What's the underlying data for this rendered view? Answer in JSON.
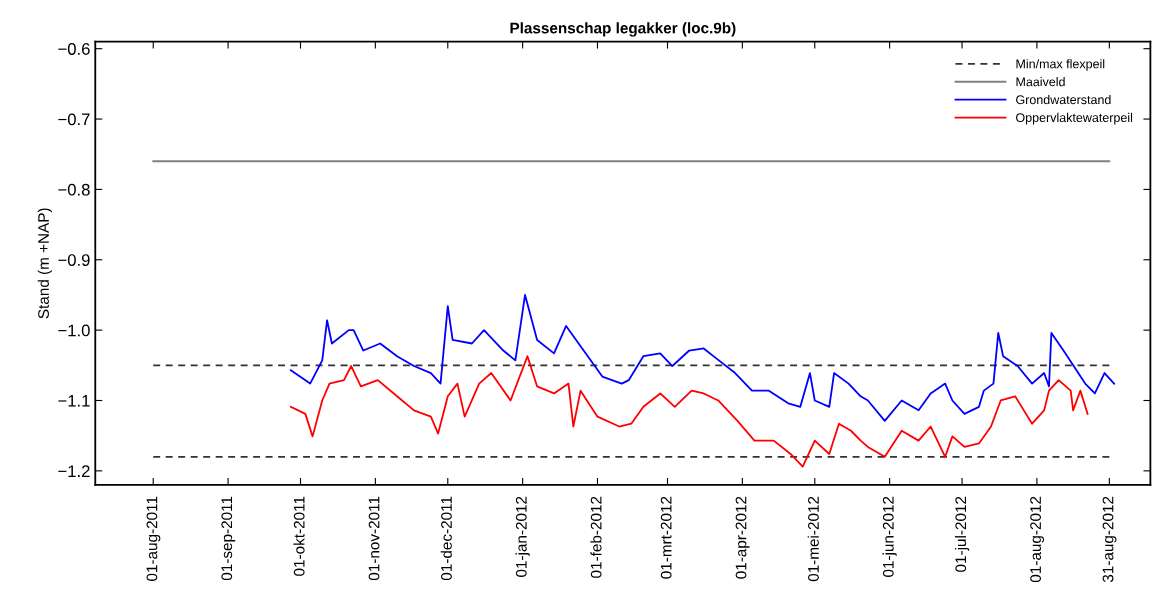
{
  "chart_data": {
    "type": "line",
    "title": "Plassenschap legakker (loc.9b)",
    "ylabel": "Stand (m +NAP)",
    "xlim": [
      "2011-07-08",
      "2012-09-17"
    ],
    "ylim": [
      -1.22,
      -0.59
    ],
    "yticks": [
      {
        "value": -0.6,
        "label": "−0.6"
      },
      {
        "value": -0.7,
        "label": "−0.7"
      },
      {
        "value": -0.8,
        "label": "−0.8"
      },
      {
        "value": -0.9,
        "label": "−0.9"
      },
      {
        "value": -1.0,
        "label": "−1.0"
      },
      {
        "value": -1.1,
        "label": "−1.1"
      },
      {
        "value": -1.2,
        "label": "−1.2"
      }
    ],
    "xticks": [
      {
        "value": "2011-08-01",
        "label": "01-aug-2011"
      },
      {
        "value": "2011-09-01",
        "label": "01-sep-2011"
      },
      {
        "value": "2011-10-01",
        "label": "01-okt-2011"
      },
      {
        "value": "2011-11-01",
        "label": "01-nov-2011"
      },
      {
        "value": "2011-12-01",
        "label": "01-dec-2011"
      },
      {
        "value": "2012-01-01",
        "label": "01-jan-2012"
      },
      {
        "value": "2012-02-01",
        "label": "01-feb-2012"
      },
      {
        "value": "2012-03-01",
        "label": "01-mrt-2012"
      },
      {
        "value": "2012-04-01",
        "label": "01-apr-2012"
      },
      {
        "value": "2012-05-01",
        "label": "01-mei-2012"
      },
      {
        "value": "2012-06-01",
        "label": "01-jun-2012"
      },
      {
        "value": "2012-07-01",
        "label": "01-jul-2012"
      },
      {
        "value": "2012-08-01",
        "label": "01-aug-2012"
      },
      {
        "value": "2012-08-31",
        "label": "31-aug-2012"
      }
    ],
    "grid": false,
    "legend": "top right",
    "marker": "none",
    "series": [
      {
        "name": "Min/max flexpeil",
        "line_style": "dashed",
        "color": "#333333",
        "x": [
          "2011-08-01",
          "2012-08-31"
        ],
        "values": [
          -1.05,
          -1.05
        ]
      },
      {
        "line_style": "dashed",
        "color": "#333333",
        "x": [
          "2011-08-01",
          "2012-08-31"
        ],
        "values": [
          -1.18,
          -1.18
        ]
      },
      {
        "name": "Maaiveld",
        "line_style": "solid",
        "color": "#808080",
        "x": [
          "2011-08-01",
          "2012-08-31"
        ],
        "values": [
          -0.76,
          -0.76
        ]
      },
      {
        "name": "Grondwaterstand",
        "line_style": "solid",
        "color": "#0000ff",
        "x": [
          "2011-09-27",
          "2011-10-05",
          "2011-10-10",
          "2011-10-12",
          "2011-10-14",
          "2011-10-21",
          "2011-10-23",
          "2011-10-27",
          "2011-11-03",
          "2011-11-10",
          "2011-11-17",
          "2011-11-24",
          "2011-11-28",
          "2011-12-01",
          "2011-12-03",
          "2011-12-11",
          "2011-12-16",
          "2011-12-24",
          "2011-12-29",
          "2012-01-02",
          "2012-01-07",
          "2012-01-14",
          "2012-01-19",
          "2012-01-25",
          "2012-02-03",
          "2012-02-11",
          "2012-02-14",
          "2012-02-20",
          "2012-02-27",
          "2012-03-03",
          "2012-03-10",
          "2012-03-16",
          "2012-03-20",
          "2012-03-29",
          "2012-04-05",
          "2012-04-12",
          "2012-04-20",
          "2012-04-25",
          "2012-04-29",
          "2012-05-01",
          "2012-05-07",
          "2012-05-09",
          "2012-05-15",
          "2012-05-20",
          "2012-05-23",
          "2012-05-30",
          "2012-06-06",
          "2012-06-13",
          "2012-06-18",
          "2012-06-24",
          "2012-06-27",
          "2012-07-02",
          "2012-07-08",
          "2012-07-10",
          "2012-07-14",
          "2012-07-16",
          "2012-07-18",
          "2012-07-24",
          "2012-07-30",
          "2012-08-04",
          "2012-08-06",
          "2012-08-07",
          "2012-08-12",
          "2012-08-21",
          "2012-08-25",
          "2012-08-29",
          "2012-09-02"
        ],
        "values": [
          -1.057,
          -1.076,
          -1.043,
          -0.986,
          -1.019,
          -1.0,
          -1.0,
          -1.029,
          -1.019,
          -1.037,
          -1.051,
          -1.061,
          -1.076,
          -0.966,
          -1.014,
          -1.019,
          -1.0,
          -1.029,
          -1.043,
          -0.95,
          -1.014,
          -1.033,
          -0.994,
          -1.023,
          -1.066,
          -1.076,
          -1.071,
          -1.037,
          -1.033,
          -1.051,
          -1.029,
          -1.026,
          -1.037,
          -1.061,
          -1.086,
          -1.086,
          -1.104,
          -1.109,
          -1.061,
          -1.1,
          -1.109,
          -1.061,
          -1.076,
          -1.094,
          -1.1,
          -1.129,
          -1.1,
          -1.114,
          -1.09,
          -1.076,
          -1.1,
          -1.119,
          -1.109,
          -1.086,
          -1.076,
          -1.004,
          -1.037,
          -1.051,
          -1.076,
          -1.061,
          -1.08,
          -1.004,
          -1.029,
          -1.076,
          -1.09,
          -1.061,
          -1.076
        ]
      },
      {
        "name": "Oppervlaktewaterpeil",
        "line_style": "solid",
        "color": "#ff0000",
        "x": [
          "2011-09-27",
          "2011-10-03",
          "2011-10-06",
          "2011-10-10",
          "2011-10-13",
          "2011-10-19",
          "2011-10-22",
          "2011-10-26",
          "2011-11-02",
          "2011-11-10",
          "2011-11-17",
          "2011-11-24",
          "2011-11-27",
          "2011-12-01",
          "2011-12-05",
          "2011-12-08",
          "2011-12-14",
          "2011-12-19",
          "2011-12-27",
          "2012-01-03",
          "2012-01-07",
          "2012-01-14",
          "2012-01-20",
          "2012-01-22",
          "2012-01-25",
          "2012-02-01",
          "2012-02-10",
          "2012-02-15",
          "2012-02-20",
          "2012-02-27",
          "2012-03-04",
          "2012-03-11",
          "2012-03-16",
          "2012-03-22",
          "2012-03-30",
          "2012-04-06",
          "2012-04-14",
          "2012-04-21",
          "2012-04-26",
          "2012-05-01",
          "2012-05-07",
          "2012-05-11",
          "2012-05-16",
          "2012-05-20",
          "2012-05-23",
          "2012-05-30",
          "2012-06-06",
          "2012-06-13",
          "2012-06-18",
          "2012-06-24",
          "2012-06-27",
          "2012-07-02",
          "2012-07-08",
          "2012-07-13",
          "2012-07-17",
          "2012-07-23",
          "2012-07-30",
          "2012-08-04",
          "2012-08-06",
          "2012-08-10",
          "2012-08-15",
          "2012-08-16",
          "2012-08-19",
          "2012-08-22"
        ],
        "values": [
          -1.109,
          -1.119,
          -1.151,
          -1.1,
          -1.076,
          -1.071,
          -1.051,
          -1.08,
          -1.071,
          -1.094,
          -1.114,
          -1.123,
          -1.147,
          -1.094,
          -1.076,
          -1.123,
          -1.076,
          -1.061,
          -1.1,
          -1.037,
          -1.08,
          -1.09,
          -1.076,
          -1.137,
          -1.086,
          -1.123,
          -1.137,
          -1.133,
          -1.109,
          -1.09,
          -1.109,
          -1.086,
          -1.09,
          -1.1,
          -1.129,
          -1.157,
          -1.157,
          -1.176,
          -1.194,
          -1.157,
          -1.176,
          -1.133,
          -1.143,
          -1.157,
          -1.166,
          -1.18,
          -1.143,
          -1.157,
          -1.137,
          -1.18,
          -1.151,
          -1.166,
          -1.161,
          -1.137,
          -1.1,
          -1.094,
          -1.133,
          -1.114,
          -1.086,
          -1.071,
          -1.086,
          -1.114,
          -1.086,
          -1.119
        ]
      }
    ]
  }
}
